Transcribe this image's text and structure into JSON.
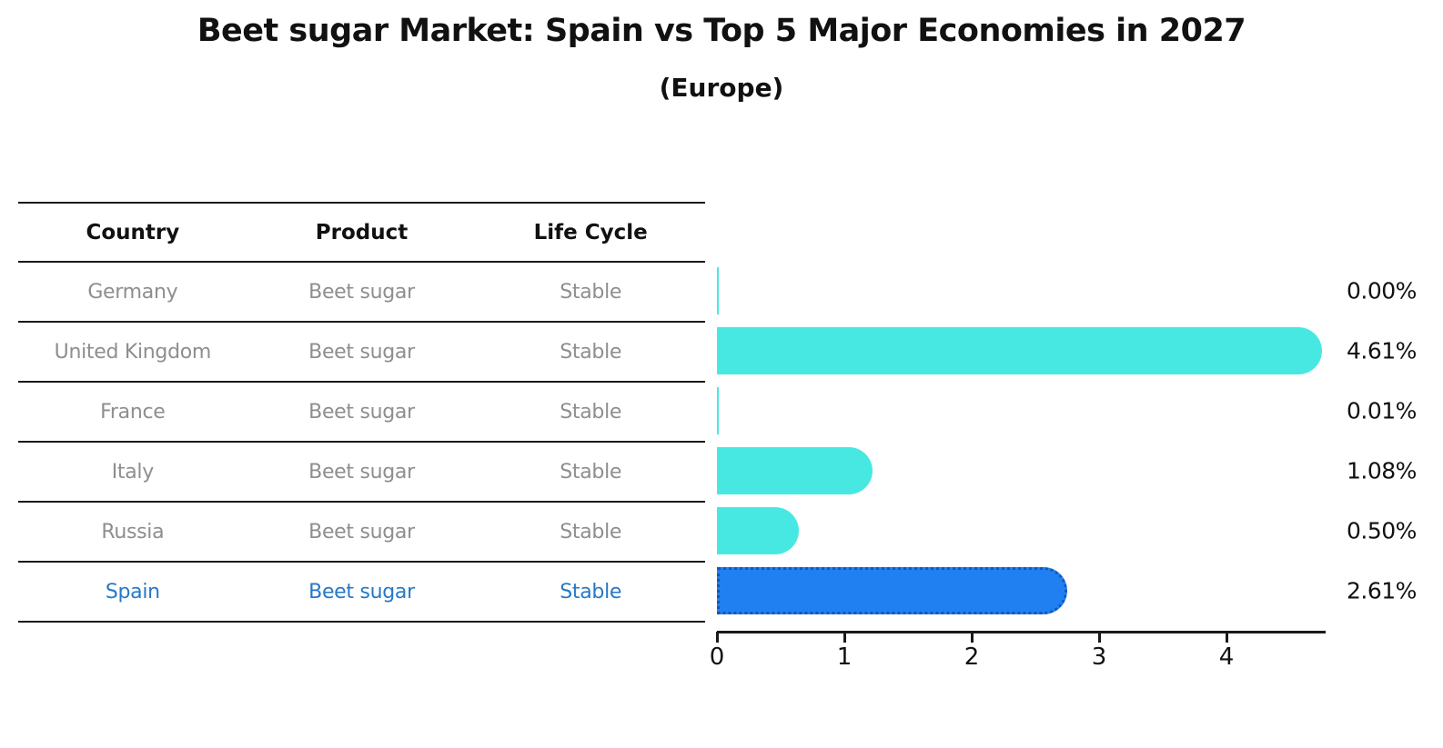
{
  "title": "Beet sugar Market: Spain vs Top 5 Major Economies in 2027",
  "subtitle": "(Europe)",
  "table": {
    "headers": [
      "Country",
      "Product",
      "Life Cycle"
    ],
    "rows": [
      {
        "country": "Germany",
        "product": "Beet sugar",
        "life_cycle": "Stable",
        "highlighted": false
      },
      {
        "country": "United Kingdom",
        "product": "Beet sugar",
        "life_cycle": "Stable",
        "highlighted": false
      },
      {
        "country": "France",
        "product": "Beet sugar",
        "life_cycle": "Stable",
        "highlighted": false
      },
      {
        "country": "Italy",
        "product": "Beet sugar",
        "life_cycle": "Stable",
        "highlighted": false
      },
      {
        "country": "Russia",
        "product": "Beet sugar",
        "life_cycle": "Stable",
        "highlighted": true
      }
    ]
  },
  "chart_data": {
    "type": "bar",
    "orientation": "horizontal",
    "title": "Beet sugar Market: Spain vs Top 5 Major Economies in 2027",
    "subtitle": "(Europe)",
    "categories": [
      "Germany",
      "United Kingdom",
      "France",
      "Italy",
      "Russia",
      "Spain"
    ],
    "values": [
      0.0,
      4.61,
      0.01,
      1.08,
      0.5,
      2.61
    ],
    "value_labels": [
      "0.00%",
      "4.61%",
      "0.01%",
      "1.08%",
      "0.50%",
      "2.61%"
    ],
    "xlabel": "",
    "ylabel": "",
    "xlim": [
      0,
      4.78
    ],
    "x_ticks": [
      0,
      1,
      2,
      3,
      4
    ],
    "grid": false,
    "legend": false,
    "highlighted_category": "Spain",
    "colors": {
      "bar_default": "#48e8e2",
      "bar_highlight": "#2080f2",
      "bar_highlight_edge": "#1456bc",
      "highlight_text": "#2578c8",
      "row_text": "#8e8e8e",
      "header_text": "#111111",
      "axis": "#1a1a1a"
    }
  }
}
